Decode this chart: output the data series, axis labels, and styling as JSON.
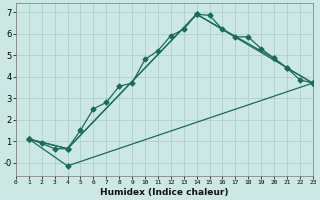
{
  "xlabel": "Humidex (Indice chaleur)",
  "bg_color": "#cce8e4",
  "grid_color": "#b0d0cc",
  "line_color": "#1a6b5a",
  "xlim": [
    0,
    23
  ],
  "ylim": [
    -0.6,
    7.4
  ],
  "xticks": [
    0,
    1,
    2,
    3,
    4,
    5,
    6,
    7,
    8,
    9,
    10,
    11,
    12,
    13,
    14,
    15,
    16,
    17,
    18,
    19,
    20,
    21,
    22,
    23
  ],
  "yticks": [
    0,
    1,
    2,
    3,
    4,
    5,
    6,
    7
  ],
  "ytick_labels": [
    "-0",
    "1",
    "2",
    "3",
    "4",
    "5",
    "6",
    "7"
  ],
  "line1_x": [
    1,
    2,
    3,
    4,
    5,
    6,
    7,
    8,
    9,
    10,
    11,
    12,
    13,
    14,
    15,
    16,
    17,
    18,
    19,
    20,
    21,
    22,
    23
  ],
  "line1_y": [
    1.1,
    0.9,
    0.65,
    0.65,
    1.5,
    2.5,
    2.8,
    3.55,
    3.7,
    4.8,
    5.2,
    5.9,
    6.2,
    6.9,
    6.85,
    6.2,
    5.85,
    5.85,
    5.3,
    4.85,
    4.4,
    3.85,
    3.7
  ],
  "line2_x": [
    1,
    4,
    14,
    20,
    21,
    23
  ],
  "line2_y": [
    1.1,
    0.65,
    6.9,
    4.85,
    4.4,
    3.7
  ],
  "line3_x": [
    1,
    4,
    14,
    23
  ],
  "line3_y": [
    1.1,
    0.65,
    6.9,
    3.7
  ],
  "line4_x": [
    1,
    4,
    23
  ],
  "line4_y": [
    1.1,
    -0.15,
    3.7
  ]
}
